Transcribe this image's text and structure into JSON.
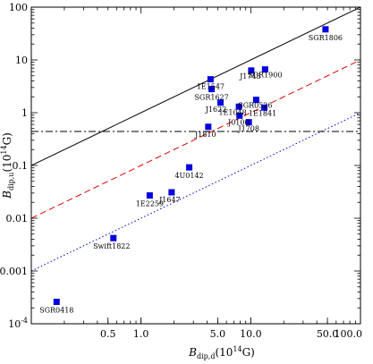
{
  "chart_data": {
    "type": "scatter",
    "x_scale": "log",
    "y_scale": "log",
    "xlim": [
      0.1,
      100
    ],
    "ylim": [
      0.0001,
      100
    ],
    "grid": false,
    "marker_color": "#0000dd",
    "xlabel": {
      "main": "B",
      "sub": "dip,d",
      "unit": "(10",
      "exp": "14",
      "tail": "G)"
    },
    "ylabel": {
      "main": "B",
      "sub": "dip,u",
      "unit": "(10",
      "exp": "14",
      "tail": "G)"
    },
    "x_ticks": [
      {
        "value": 0.5,
        "label": "0.5"
      },
      {
        "value": 1,
        "label": "1.0"
      },
      {
        "value": 5,
        "label": "5.0"
      },
      {
        "value": 10,
        "label": "10.0"
      },
      {
        "value": 50,
        "label": "50.0"
      },
      {
        "value": 100,
        "label": "100.0"
      }
    ],
    "y_ticks": [
      {
        "value": 0.0001,
        "label": "10",
        "exp": "-4"
      },
      {
        "value": 0.001,
        "label": "0.001"
      },
      {
        "value": 0.01,
        "label": "0.01"
      },
      {
        "value": 0.1,
        "label": "0.1"
      },
      {
        "value": 1,
        "label": "1"
      },
      {
        "value": 10,
        "label": "10"
      },
      {
        "value": 100,
        "label": "100"
      }
    ],
    "lines": [
      {
        "kind": "power",
        "coef": 1,
        "color": "#000000",
        "style": "solid"
      },
      {
        "kind": "power",
        "coef": 0.1,
        "color": "#dd0000",
        "style": "dashed"
      },
      {
        "kind": "power",
        "coef": 0.01,
        "color": "#0000cc",
        "style": "dotted"
      },
      {
        "kind": "horizontal",
        "value": 0.44,
        "color": "#000000",
        "style": "dashdot"
      }
    ],
    "points": [
      {
        "name": "SGR1806",
        "x": 48,
        "y": 38
      },
      {
        "name": "1E1547",
        "x": 4.3,
        "y": 4.3
      },
      {
        "name": "SGR1627",
        "x": 4.4,
        "y": 2.8
      },
      {
        "name": "J1745",
        "x": 10.1,
        "y": 6.3
      },
      {
        "name": "SGR1900",
        "x": 13.5,
        "y": 6.6
      },
      {
        "name": "SGR0526",
        "x": 11.2,
        "y": 1.75
      },
      {
        "name": "J1622",
        "x": 5.3,
        "y": 1.55
      },
      {
        "name": "1E1048",
        "x": 7.8,
        "y": 1.3
      },
      {
        "name": "1E1841",
        "x": 13.3,
        "y": 1.25
      },
      {
        "name": "J0100",
        "x": 7.9,
        "y": 0.88
      },
      {
        "name": "J1708",
        "x": 9.6,
        "y": 0.66
      },
      {
        "name": "J1810",
        "x": 4.1,
        "y": 0.54
      },
      {
        "name": "4U0142",
        "x": 2.75,
        "y": 0.092
      },
      {
        "name": "1E2259",
        "x": 1.2,
        "y": 0.027
      },
      {
        "name": "J1647",
        "x": 1.9,
        "y": 0.031
      },
      {
        "name": "Swift1822",
        "x": 0.56,
        "y": 0.0042
      },
      {
        "name": "SGR0418",
        "x": 0.17,
        "y": 0.00026
      }
    ]
  }
}
